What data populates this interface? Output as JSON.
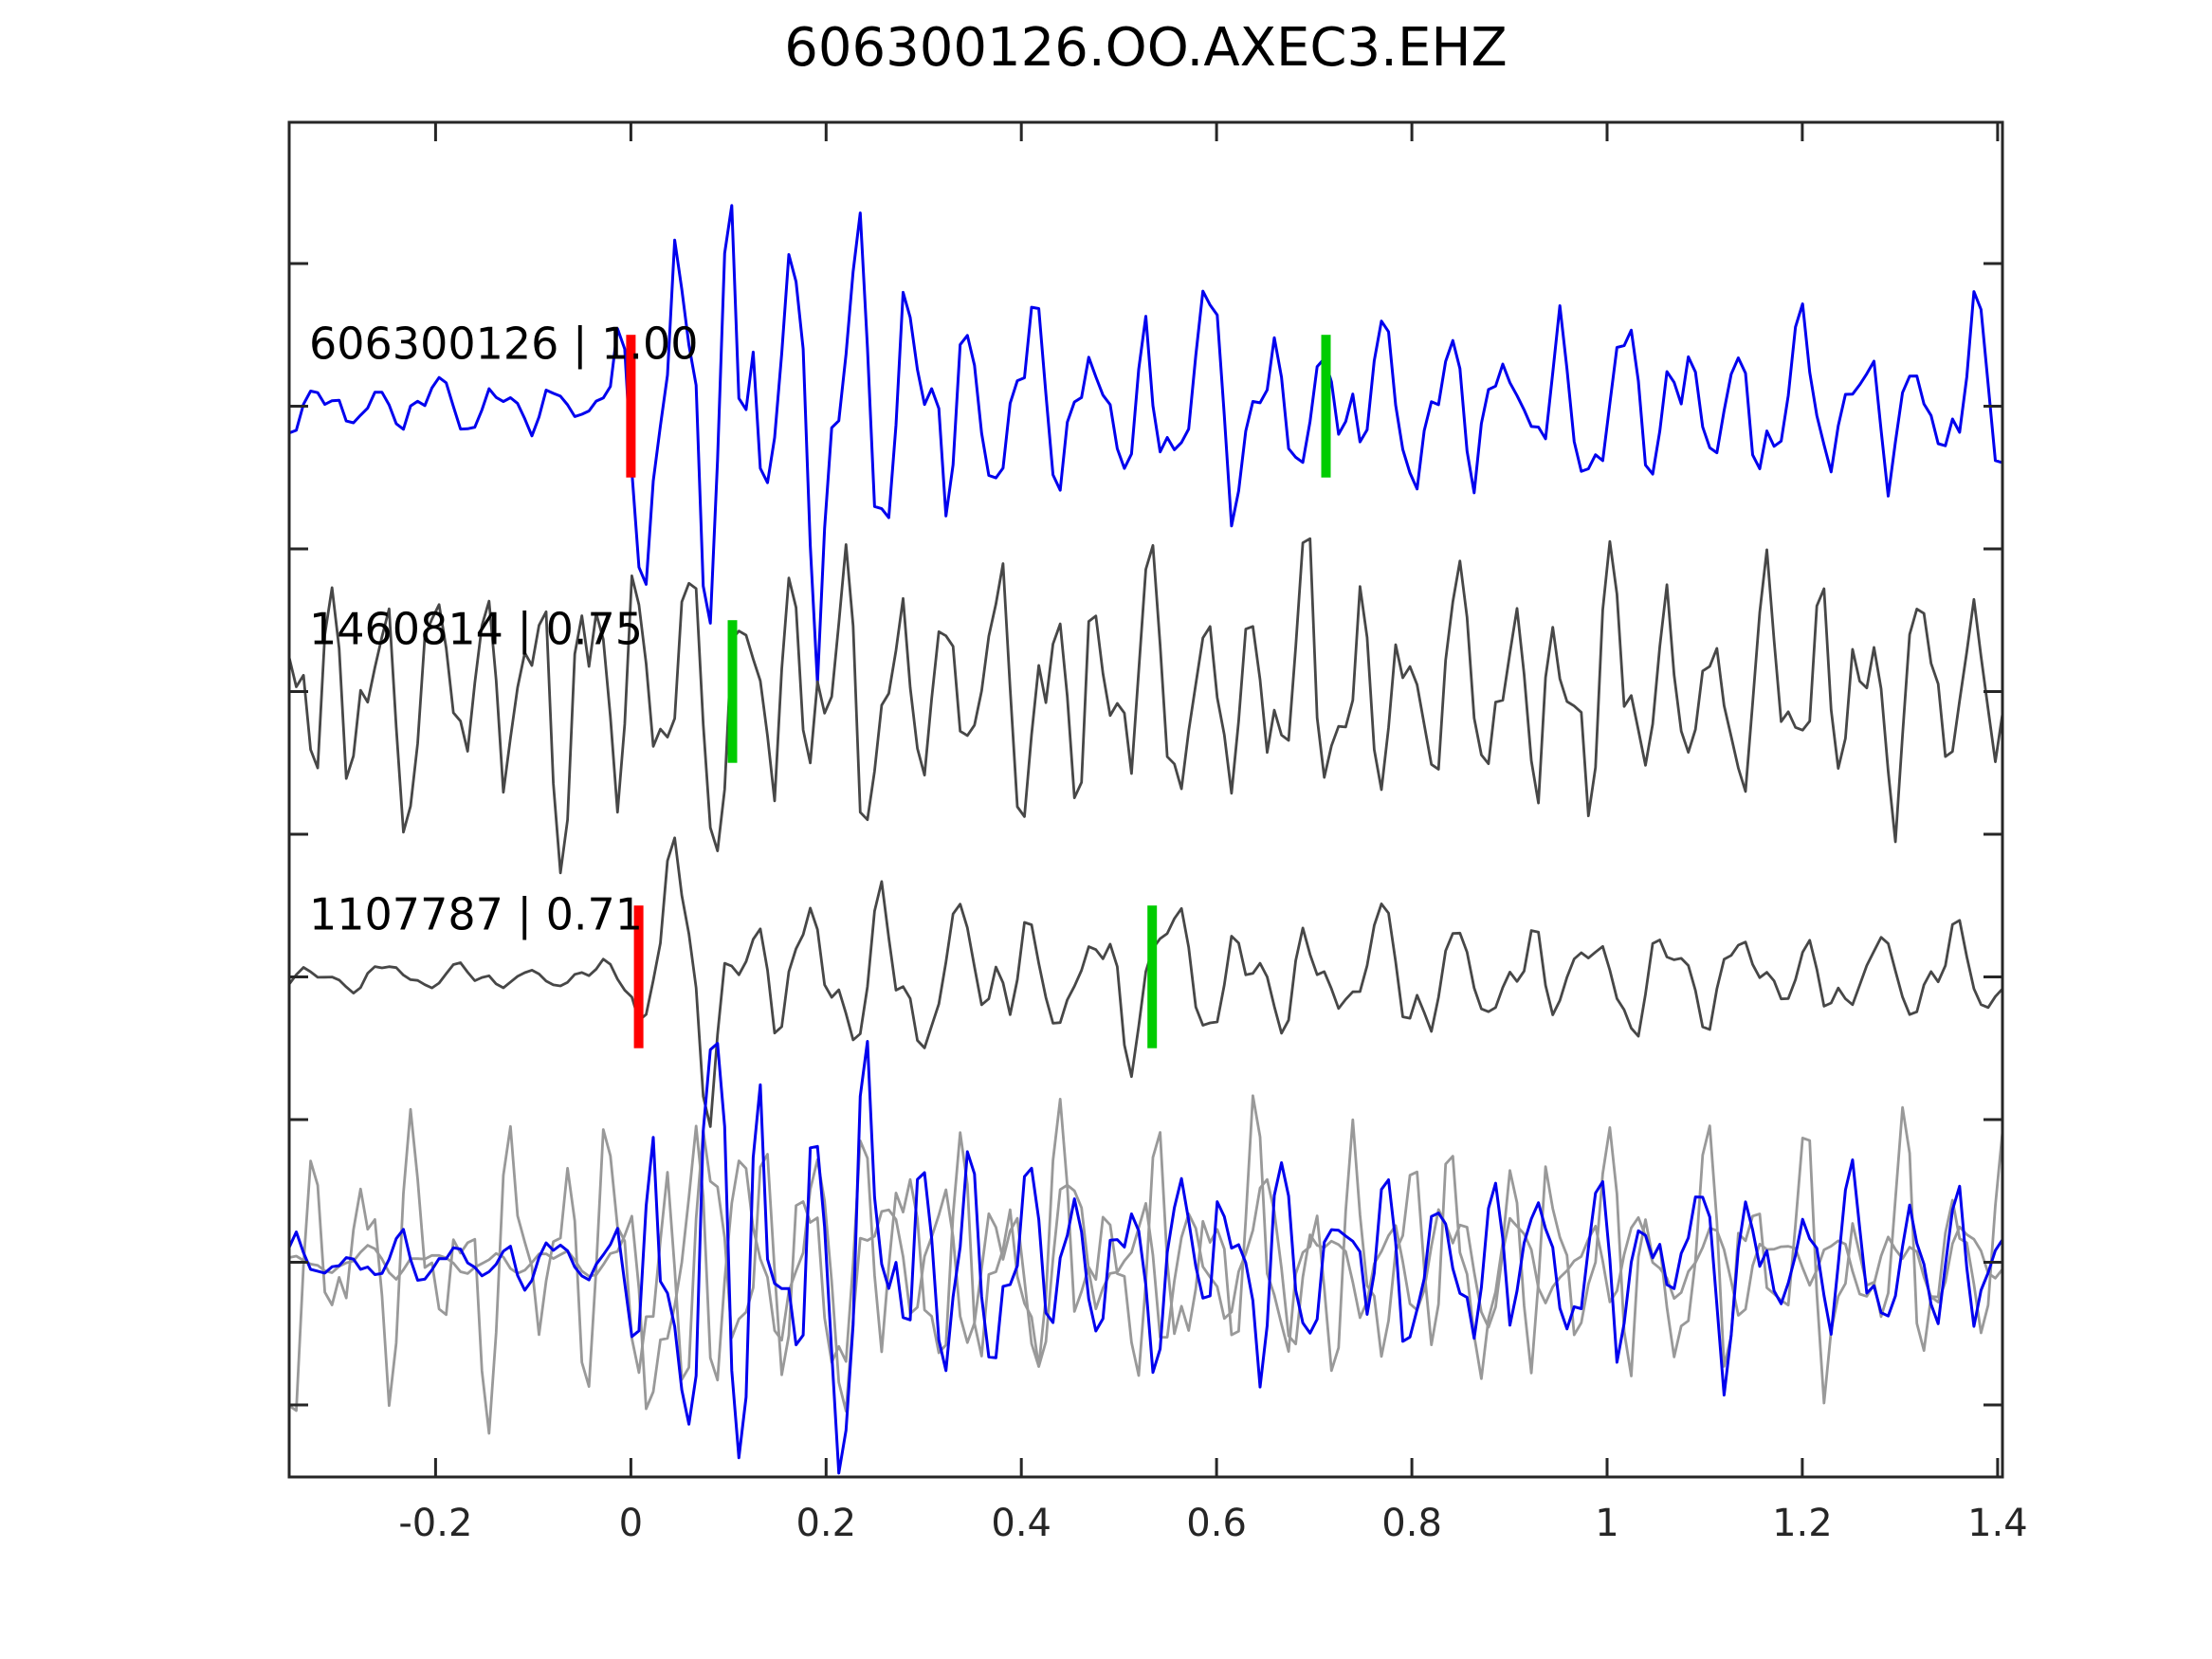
{
  "figure": {
    "title": "606300126.OO.AXEC3.EHZ",
    "background": "#ffffff",
    "axis_color": "#262626",
    "text_color": "#000000"
  },
  "chart_data": {
    "type": "line",
    "title": "606300126.OO.AXEC3.EHZ",
    "xlabel": "",
    "ylabel": "",
    "xlim": [
      -0.35,
      1.405
    ],
    "ylim": [
      -0.7525,
      3.995
    ],
    "grid": false,
    "legend": "none",
    "x_ticks": [
      -0.2,
      0,
      0.2,
      0.4,
      0.6,
      0.8,
      1,
      1.2,
      1.4
    ],
    "x_tick_labels": [
      "-0.2",
      "0",
      "0.2",
      "0.4",
      "0.6",
      "0.8",
      "1",
      "1.2",
      "1.4"
    ],
    "y_ticks": [
      3.5,
      3,
      2.5,
      2,
      1.5,
      1,
      0.5,
      0,
      -0.5
    ],
    "y_tick_labels": [
      "",
      "",
      "",
      "",
      "",
      "",
      "",
      "",
      ""
    ],
    "marker_colors": {
      "p_pick": "#ff0000",
      "s_pick": "#00cc00"
    },
    "traces": [
      {
        "name": "template-606300126",
        "label": "606300126 | 1.00",
        "template_id": "606300126",
        "correlation": "1.00",
        "row": 3,
        "color": "#0000ee",
        "line_width": 3,
        "freq": 18,
        "seed": 11,
        "envelope": [
          [
            -0.35,
            0.09
          ],
          [
            -0.03,
            0.1
          ],
          [
            0.0,
            0.35
          ],
          [
            0.02,
            0.75
          ],
          [
            0.06,
            0.88
          ],
          [
            0.13,
            0.85
          ],
          [
            0.2,
            0.68
          ],
          [
            0.28,
            0.6
          ],
          [
            0.33,
            0.45
          ],
          [
            0.38,
            0.32
          ],
          [
            0.5,
            0.3
          ],
          [
            0.58,
            0.43
          ],
          [
            0.65,
            0.3
          ],
          [
            0.8,
            0.28
          ],
          [
            1.0,
            0.3
          ],
          [
            1.2,
            0.27
          ],
          [
            1.4,
            0.3
          ]
        ],
        "picks": [
          {
            "type": "p_pick",
            "time": 0.0,
            "color": "#ff0000"
          },
          {
            "type": "s_pick",
            "time": 0.712,
            "color": "#00cc00"
          }
        ]
      },
      {
        "name": "detection-1460814",
        "label": "1460814 | 0.75",
        "template_id": "1460814",
        "correlation": "0.75",
        "row": 2,
        "color": "#474747",
        "line_width": 2.8,
        "freq": 19,
        "seed": 23,
        "envelope": [
          [
            -0.35,
            0.42
          ],
          [
            -0.1,
            0.45
          ],
          [
            0.0,
            0.52
          ],
          [
            0.05,
            0.6
          ],
          [
            0.1,
            0.5
          ],
          [
            0.2,
            0.45
          ],
          [
            0.4,
            0.42
          ],
          [
            0.6,
            0.45
          ],
          [
            0.8,
            0.4
          ],
          [
            1.0,
            0.42
          ],
          [
            1.2,
            0.38
          ],
          [
            1.4,
            0.4
          ]
        ],
        "picks": [
          {
            "type": "s_pick",
            "time": 0.104,
            "color": "#00cc00"
          }
        ]
      },
      {
        "name": "detection-1107787",
        "label": "1107787 | 0.71",
        "template_id": "1107787",
        "correlation": "0.71",
        "row": 1,
        "color": "#474747",
        "line_width": 2.8,
        "freq": 15,
        "seed": 31,
        "envelope": [
          [
            -0.35,
            0.045
          ],
          [
            -0.01,
            0.05
          ],
          [
            0.005,
            0.1
          ],
          [
            0.02,
            0.8
          ],
          [
            0.05,
            0.55
          ],
          [
            0.1,
            0.32
          ],
          [
            0.2,
            0.3
          ],
          [
            0.35,
            0.25
          ],
          [
            0.5,
            0.26
          ],
          [
            0.7,
            0.22
          ],
          [
            0.9,
            0.2
          ],
          [
            1.1,
            0.17
          ],
          [
            1.25,
            0.15
          ],
          [
            1.4,
            0.16
          ]
        ],
        "picks": [
          {
            "type": "p_pick",
            "time": 0.008,
            "color": "#ff0000"
          },
          {
            "type": "s_pick",
            "time": 0.534,
            "color": "#00cc00"
          }
        ]
      },
      {
        "name": "overlay-gray-continuous",
        "label": "",
        "row": 0,
        "color": "#999999",
        "line_width": 2.8,
        "freq": 19,
        "seed": 47,
        "envelope": [
          [
            -0.35,
            0.45
          ],
          [
            0.0,
            0.5
          ],
          [
            0.1,
            0.48
          ],
          [
            0.3,
            0.45
          ],
          [
            0.5,
            0.42
          ],
          [
            0.7,
            0.45
          ],
          [
            0.9,
            0.42
          ],
          [
            1.1,
            0.44
          ],
          [
            1.4,
            0.42
          ]
        ],
        "picks": []
      },
      {
        "name": "overlay-gray-onset",
        "label": "",
        "row": 0,
        "color": "#999999",
        "line_width": 2.8,
        "freq": 16,
        "seed": 59,
        "envelope": [
          [
            -0.35,
            0.05
          ],
          [
            -0.01,
            0.05
          ],
          [
            0.02,
            0.75
          ],
          [
            0.06,
            0.6
          ],
          [
            0.15,
            0.4
          ],
          [
            0.3,
            0.35
          ],
          [
            0.5,
            0.3
          ],
          [
            0.7,
            0.25
          ],
          [
            0.9,
            0.2
          ],
          [
            1.1,
            0.15
          ],
          [
            1.4,
            0.12
          ]
        ],
        "picks": []
      },
      {
        "name": "overlay-blue",
        "label": "",
        "row": 0,
        "color": "#0000ee",
        "line_width": 3,
        "freq": 18,
        "seed": 5,
        "envelope": [
          [
            -0.35,
            0.08
          ],
          [
            -0.02,
            0.09
          ],
          [
            0.0,
            0.3
          ],
          [
            0.03,
            0.8
          ],
          [
            0.08,
            0.85
          ],
          [
            0.15,
            0.8
          ],
          [
            0.25,
            0.65
          ],
          [
            0.32,
            0.5
          ],
          [
            0.4,
            0.35
          ],
          [
            0.55,
            0.3
          ],
          [
            0.6,
            0.45
          ],
          [
            0.7,
            0.32
          ],
          [
            0.9,
            0.3
          ],
          [
            1.1,
            0.32
          ],
          [
            1.25,
            0.28
          ],
          [
            1.4,
            0.3
          ]
        ],
        "picks": []
      }
    ]
  }
}
